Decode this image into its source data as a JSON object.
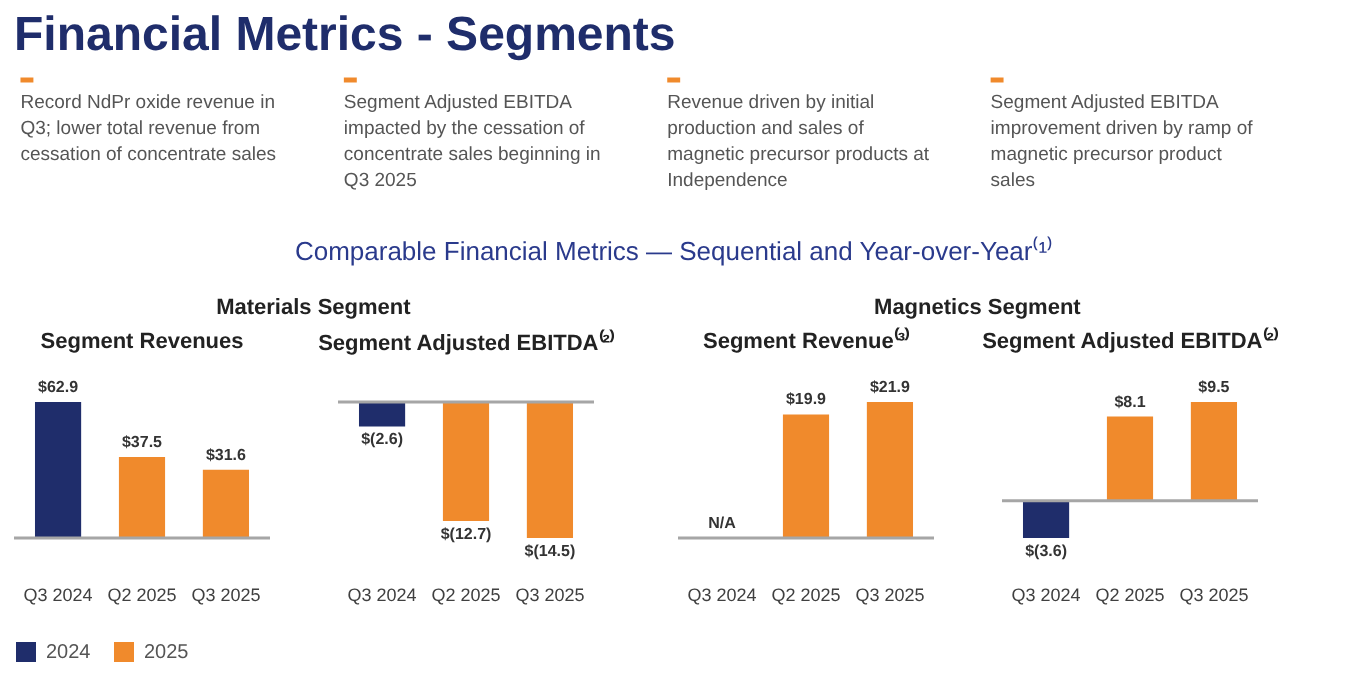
{
  "chart_data": [
    {
      "type": "other",
      "title": "Financial Metrics - Segments",
      "subtitle": "Comparable Financial Metrics — Sequential and Year-over-Year⁽¹⁾",
      "annotations": [
        "Record NdPr oxide revenue in Q3; lower total revenue from cessation of concentrate sales",
        "Segment Adjusted EBITDA impacted by the cessation of concentrate sales beginning in Q3 2025",
        "Revenue driven by initial production and sales of magnetic precursor products at Independence",
        "Segment Adjusted EBITDA improvement driven by ramp of magnetic precursor product sales"
      ]
    },
    {
      "type": "bar",
      "subtitle": "Materials Segment",
      "title": "Segment Revenues",
      "categories": [
        "Q3 2024",
        "Q2 2025",
        "Q3 2025"
      ],
      "series": [
        {
          "name": "2024",
          "color": "#1f2d6b",
          "values": [
            62.9,
            null,
            null
          ],
          "value_labels": [
            "$62.9",
            null,
            null
          ]
        },
        {
          "name": "2025",
          "color": "#f08a2c",
          "values": [
            null,
            37.5,
            31.6
          ],
          "value_labels": [
            null,
            "$37.5",
            "$31.6"
          ]
        }
      ],
      "tick_labels": "x",
      "ref_lines": [
        {
          "axis": "y",
          "value": 0,
          "color": "#a6a6a6"
        }
      ],
      "legend": "bottom"
    },
    {
      "type": "bar",
      "title": "Segment Adjusted EBITDA⁽²⁾",
      "categories": [
        "Q3 2024",
        "Q2 2025",
        "Q3 2025"
      ],
      "series": [
        {
          "name": "2024",
          "color": "#1f2d6b",
          "values": [
            -2.6,
            null,
            null
          ],
          "value_labels": [
            "$(2.6)",
            null,
            null
          ]
        },
        {
          "name": "2025",
          "color": "#f08a2c",
          "values": [
            null,
            -12.7,
            -14.5
          ],
          "value_labels": [
            null,
            "$(12.7)",
            "$(14.5)"
          ]
        }
      ],
      "tick_labels": "x",
      "ref_lines": [
        {
          "axis": "y",
          "value": 0,
          "color": "#a6a6a6"
        }
      ],
      "legend": "bottom"
    },
    {
      "type": "bar",
      "subtitle": "Magnetics Segment",
      "title": "Segment Revenue⁽³⁾",
      "categories": [
        "Q3 2024",
        "Q2 2025",
        "Q3 2025"
      ],
      "series": [
        {
          "name": "2024",
          "color": "#1f2d6b",
          "values": [
            null,
            null,
            null
          ],
          "value_labels": [
            "N/A",
            null,
            null
          ]
        },
        {
          "name": "2025",
          "color": "#f08a2c",
          "values": [
            null,
            19.9,
            21.9
          ],
          "value_labels": [
            null,
            "$19.9",
            "$21.9"
          ]
        }
      ],
      "tick_labels": "x",
      "ref_lines": [
        {
          "axis": "y",
          "value": 0,
          "color": "#a6a6a6"
        }
      ],
      "legend": "bottom"
    },
    {
      "type": "bar",
      "title": "Segment Adjusted EBITDA⁽²⁾",
      "categories": [
        "Q3 2024",
        "Q2 2025",
        "Q3 2025"
      ],
      "series": [
        {
          "name": "2024",
          "color": "#1f2d6b",
          "values": [
            -3.6,
            null,
            null
          ],
          "value_labels": [
            "$(3.6)",
            null,
            null
          ]
        },
        {
          "name": "2025",
          "color": "#f08a2c",
          "values": [
            null,
            8.1,
            9.5
          ],
          "value_labels": [
            null,
            "$8.1",
            "$9.5"
          ]
        }
      ],
      "tick_labels": "x",
      "ref_lines": [
        {
          "axis": "y",
          "value": 0,
          "color": "#a6a6a6"
        }
      ],
      "legend": "bottom"
    }
  ]
}
